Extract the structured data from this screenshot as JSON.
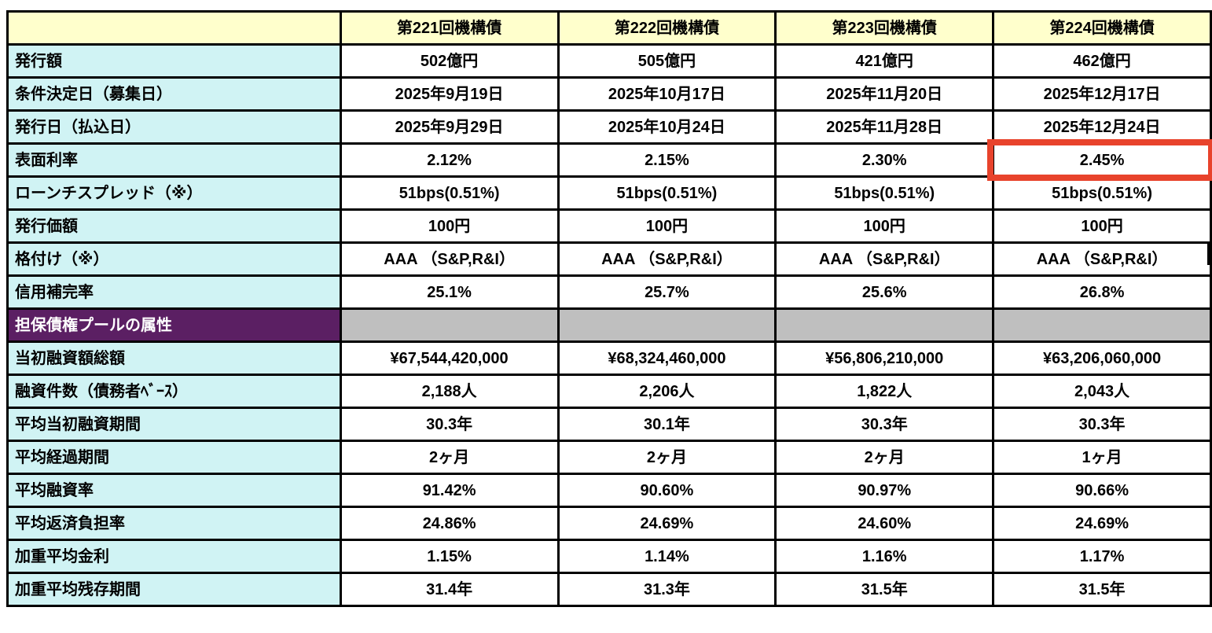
{
  "colors": {
    "header_bg": "#FFFFCC",
    "label_bg": "#D0F3F4",
    "section_label_bg": "#5B1F63",
    "section_label_text": "#FFFFFF",
    "section_value_bg": "#BFBFBF",
    "border": "#000000",
    "highlight_border": "#E8432C"
  },
  "table": {
    "corner_label": "",
    "columns": [
      "第221回機構債",
      "第222回機構債",
      "第223回機構債",
      "第224回機構債"
    ],
    "rows": [
      {
        "label": "発行額",
        "values": [
          "502億円",
          "505億円",
          "421億円",
          "462億円"
        ]
      },
      {
        "label": "条件決定日（募集日）",
        "values": [
          "2025年9月19日",
          "2025年10月17日",
          "2025年11月20日",
          "2025年12月17日"
        ]
      },
      {
        "label": "発行日（払込日）",
        "values": [
          "2025年9月29日",
          "2025年10月24日",
          "2025年11月28日",
          "2025年12月24日"
        ]
      },
      {
        "label": "表面利率",
        "values": [
          "2.12%",
          "2.15%",
          "2.30%",
          "2.45%"
        ]
      },
      {
        "label": "ローンチスプレッド（※）",
        "values": [
          "51bps(0.51%)",
          "51bps(0.51%)",
          "51bps(0.51%)",
          "51bps(0.51%)"
        ]
      },
      {
        "label": "発行価額",
        "values": [
          "100円",
          "100円",
          "100円",
          "100円"
        ]
      },
      {
        "label": "格付け（※）",
        "values": [
          "AAA （S&P,R&I）",
          "AAA （S&P,R&I）",
          "AAA （S&P,R&I）",
          "AAA （S&P,R&I）"
        ]
      },
      {
        "label": "信用補完率",
        "values": [
          "25.1%",
          "25.7%",
          "25.6%",
          "26.8%"
        ]
      },
      {
        "label": "担保債権プールの属性",
        "section": true,
        "values": [
          "",
          "",
          "",
          ""
        ]
      },
      {
        "label": "当初融資額総額",
        "values": [
          "¥67,544,420,000",
          "¥68,324,460,000",
          "¥56,806,210,000",
          "¥63,206,060,000"
        ]
      },
      {
        "label": "融資件数（債務者ﾍﾞｰｽ）",
        "values": [
          "2,188人",
          "2,206人",
          "1,822人",
          "2,043人"
        ]
      },
      {
        "label": "平均当初融資期間",
        "values": [
          "30.3年",
          "30.1年",
          "30.3年",
          "30.3年"
        ]
      },
      {
        "label": "平均経過期間",
        "values": [
          "2ヶ月",
          "2ヶ月",
          "2ヶ月",
          "1ヶ月"
        ]
      },
      {
        "label": "平均融資率",
        "values": [
          "91.42%",
          "90.60%",
          "90.97%",
          "90.66%"
        ]
      },
      {
        "label": "平均返済負担率",
        "values": [
          "24.86%",
          "24.69%",
          "24.60%",
          "24.69%"
        ]
      },
      {
        "label": "加重平均金利",
        "values": [
          "1.15%",
          "1.14%",
          "1.16%",
          "1.17%"
        ]
      },
      {
        "label": "加重平均残存期間",
        "values": [
          "31.4年",
          "31.3年",
          "31.5年",
          "31.5年"
        ]
      }
    ],
    "highlight": {
      "row_label": "表面利率",
      "column": "第224回機構債",
      "row_index": 3,
      "col_index": 3,
      "value": "2.45%"
    }
  }
}
